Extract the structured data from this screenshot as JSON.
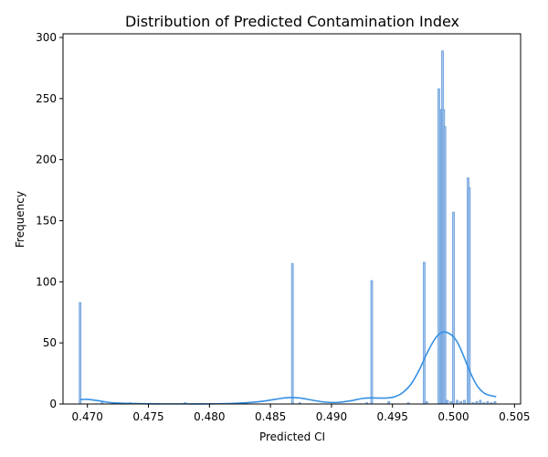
{
  "chart_data": {
    "type": "bar",
    "title": "Distribution of Predicted Contamination Index",
    "xlabel": "Predicted CI",
    "ylabel": "Frequency",
    "xlim": [
      0.468,
      0.5055
    ],
    "ylim": [
      0,
      303
    ],
    "xticks": [
      0.47,
      0.475,
      0.48,
      0.485,
      0.49,
      0.495,
      0.5,
      0.505
    ],
    "xtick_labels": [
      "0.470",
      "0.475",
      "0.480",
      "0.485",
      "0.490",
      "0.495",
      "0.500",
      "0.505"
    ],
    "yticks": [
      0,
      50,
      100,
      150,
      200,
      250,
      300
    ],
    "ytick_labels": [
      "0",
      "50",
      "100",
      "150",
      "200",
      "250",
      "300"
    ],
    "bin_width": 0.0001,
    "colors": {
      "bar_fill": "#a4c4ec",
      "bar_edge": "#6a9fdc",
      "kde_line": "#3590e3"
    },
    "histogram": {
      "x": [
        0.4694,
        0.4868,
        0.4933,
        0.4976,
        0.4988,
        0.499,
        0.4991,
        0.4992,
        0.4993,
        0.4995,
        0.5,
        0.5012,
        0.5013,
        0.4712,
        0.4735,
        0.478,
        0.483,
        0.4874,
        0.4929,
        0.4947,
        0.4963,
        0.4978,
        0.4998,
        0.5003,
        0.5006,
        0.5009,
        0.5016,
        0.5019,
        0.5022,
        0.5025,
        0.5028,
        0.5031,
        0.5034
      ],
      "counts": [
        83,
        115,
        101,
        116,
        258,
        241,
        289,
        241,
        227,
        3,
        157,
        185,
        177,
        1,
        1,
        1,
        1,
        1,
        1,
        2,
        1,
        2,
        2,
        3,
        2,
        3,
        1,
        2,
        3,
        1,
        2,
        1,
        2
      ]
    },
    "kde": {
      "x": [
        0.4694,
        0.47,
        0.471,
        0.472,
        0.474,
        0.476,
        0.478,
        0.48,
        0.482,
        0.484,
        0.4855,
        0.4862,
        0.4868,
        0.4875,
        0.4885,
        0.4895,
        0.4905,
        0.4915,
        0.4925,
        0.4932,
        0.494,
        0.4947,
        0.4952,
        0.4958,
        0.4965,
        0.4972,
        0.4978,
        0.4984,
        0.4988,
        0.4992,
        0.4996,
        0.5,
        0.5004,
        0.5008,
        0.5012,
        0.5016,
        0.502,
        0.5025,
        0.503,
        0.5035
      ],
      "y": [
        3.5,
        3.8,
        2.5,
        1.0,
        0.3,
        0.1,
        0.1,
        0.1,
        0.5,
        1.8,
        4.0,
        5.0,
        5.3,
        4.8,
        3.0,
        1.5,
        1.3,
        2.5,
        4.5,
        5.0,
        4.8,
        5.0,
        6.0,
        9.0,
        16.0,
        28.0,
        41.0,
        52.0,
        57.0,
        59.0,
        58.0,
        55.0,
        49.0,
        40.0,
        30.0,
        21.0,
        14.0,
        9.0,
        7.0,
        6.0
      ]
    }
  }
}
